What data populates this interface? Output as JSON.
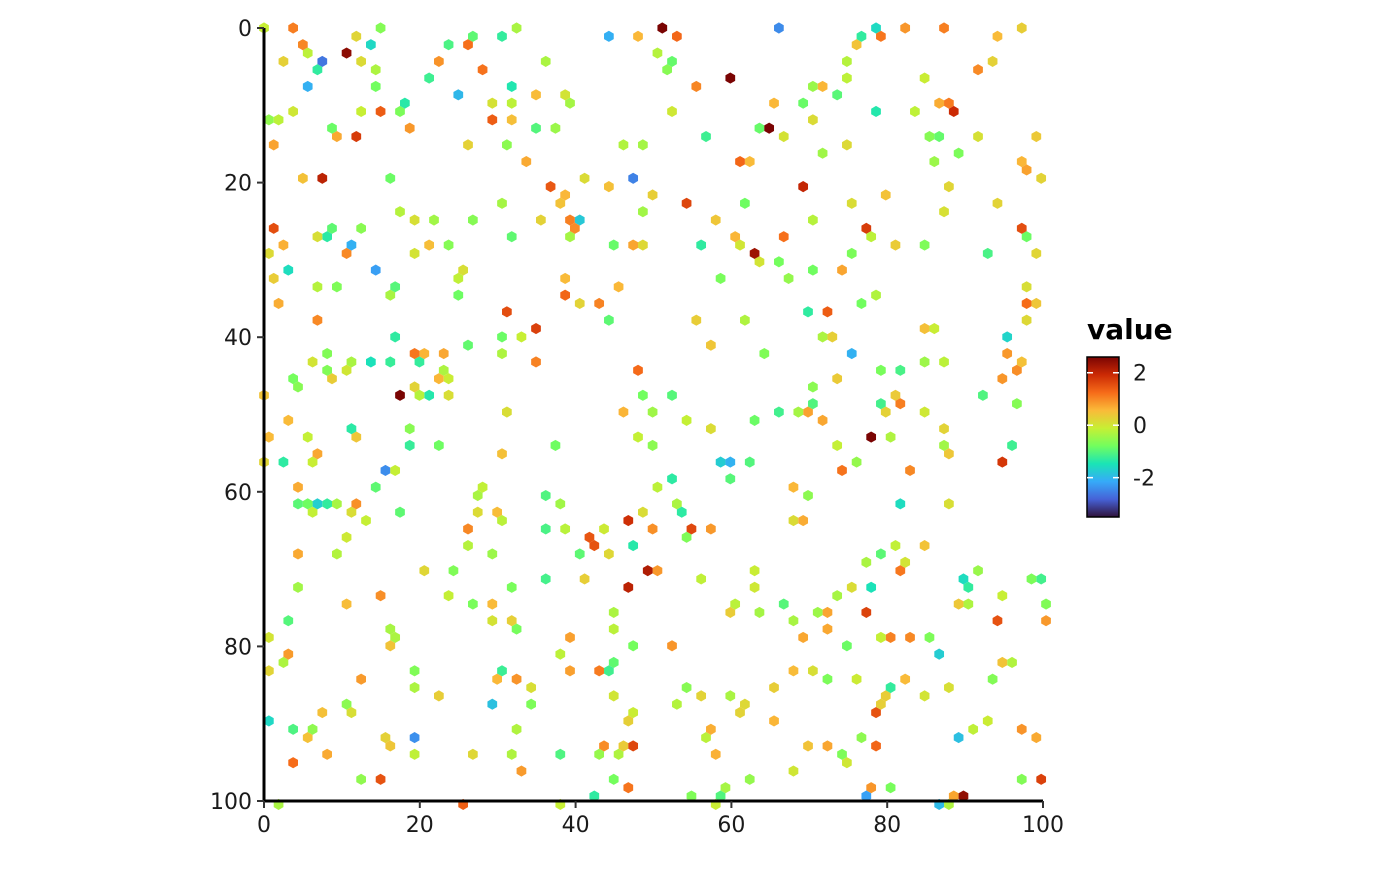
{
  "chart_data": {
    "type": "heatmap",
    "subtype": "hexbin",
    "title": "",
    "xlabel": "",
    "ylabel": "",
    "xlim": [
      0,
      100
    ],
    "ylim": [
      0,
      100
    ],
    "y_reversed": true,
    "x_ticks": [
      "0",
      "20",
      "40",
      "60",
      "80",
      "100"
    ],
    "y_ticks": [
      "0",
      "20",
      "40",
      "60",
      "80",
      "100"
    ],
    "x_tick_values": [
      0,
      20,
      40,
      60,
      80,
      100
    ],
    "y_tick_values": [
      0,
      20,
      40,
      60,
      80,
      100
    ],
    "grid": false,
    "legend": {
      "title": "value",
      "placement": "right",
      "range": [
        -3.5,
        2.6
      ],
      "ticks": [
        "2",
        "0",
        "-2"
      ],
      "tick_values": [
        2,
        0,
        -2
      ],
      "colormap": "turbo"
    },
    "colormap_stops": [
      "#30123B",
      "#4662D7",
      "#36AAF9",
      "#1AE4B6",
      "#72FE5E",
      "#C7EF34",
      "#FABA39",
      "#F66B19",
      "#CB2A04",
      "#7A0403"
    ],
    "hex_radius_data": 0.72,
    "point_count": 520,
    "random_seed": 20240517
  }
}
